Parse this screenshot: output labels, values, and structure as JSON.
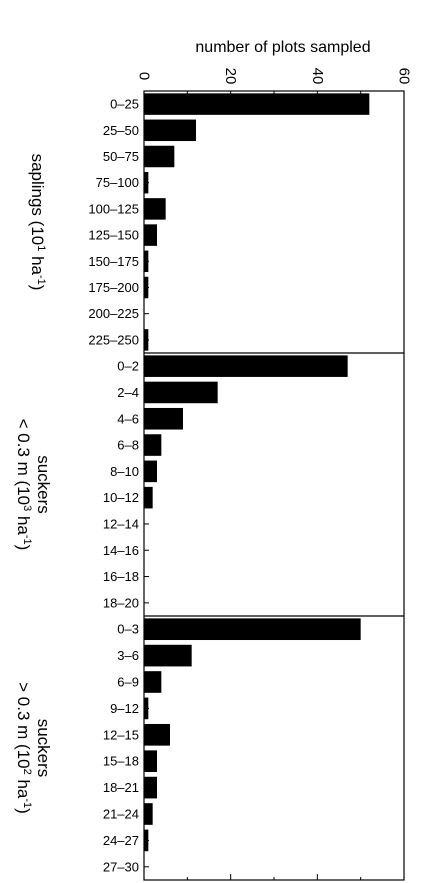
{
  "chart_data": {
    "type": "bar",
    "orientation": "horizontal",
    "title": "",
    "xlabel": "number of plots sampled",
    "xlim": [
      0,
      60
    ],
    "x_ticks": [
      "0",
      "20",
      "40",
      "60"
    ],
    "grid": false,
    "legend": "none",
    "bar_color": "#000000",
    "panels": [
      {
        "label_lines": [
          "saplings (10",
          "1",
          " ha",
          "-1",
          ")"
        ],
        "categories": [
          "0–25",
          "25–50",
          "50–75",
          "75–100",
          "100–125",
          "125–150",
          "150–175",
          "175–200",
          "200–225",
          "225–250"
        ],
        "values": [
          52,
          12,
          7,
          1,
          5,
          3,
          1,
          1,
          0,
          1
        ]
      },
      {
        "label_lines": [
          "suckers",
          "< 0.3 m (10",
          "3",
          " ha",
          "-1",
          ")"
        ],
        "categories": [
          "0–2",
          "2–4",
          "4–6",
          "6–8",
          "8–10",
          "10–12",
          "12–14",
          "14–16",
          "16–18",
          "18–20"
        ],
        "values": [
          47,
          17,
          9,
          4,
          3,
          2,
          0,
          0,
          0,
          0
        ]
      },
      {
        "label_lines": [
          "suckers",
          "> 0.3 m (10",
          "2",
          " ha",
          "-1",
          ")"
        ],
        "categories": [
          "0–3",
          "3–6",
          "6–9",
          "9–12",
          "12–15",
          "15–18",
          "18–21",
          "21–24",
          "24–27",
          "27–30"
        ],
        "values": [
          50,
          11,
          4,
          1,
          6,
          3,
          3,
          2,
          1,
          0
        ]
      }
    ]
  }
}
